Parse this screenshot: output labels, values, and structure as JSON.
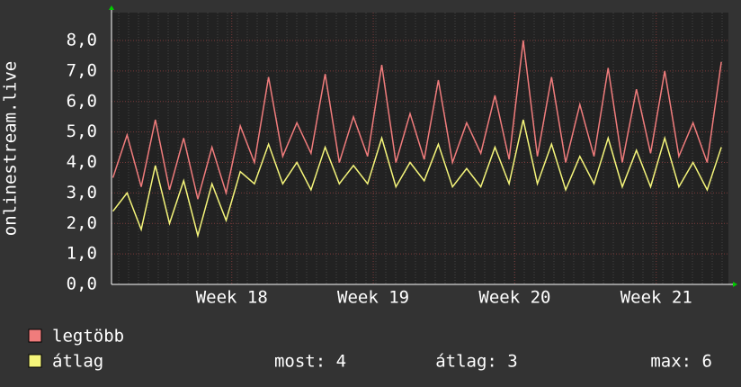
{
  "chart_data": {
    "type": "line",
    "y_label": "onlinestream.live",
    "xlim": [
      17.15,
      21.51
    ],
    "xticks": [
      {
        "value": 18,
        "label": "Week 18"
      },
      {
        "value": 19,
        "label": "Week 19"
      },
      {
        "value": 20,
        "label": "Week 20"
      },
      {
        "value": 21,
        "label": "Week 21"
      }
    ],
    "ylim": [
      0,
      8
    ],
    "yticks": [
      {
        "value": 0,
        "label": "0,0"
      },
      {
        "value": 1,
        "label": "1,0"
      },
      {
        "value": 2,
        "label": "2,0"
      },
      {
        "value": 3,
        "label": "3,0"
      },
      {
        "value": 4,
        "label": "4,0"
      },
      {
        "value": 5,
        "label": "5,0"
      },
      {
        "value": 6,
        "label": "6,0"
      },
      {
        "value": 7,
        "label": "7,0"
      },
      {
        "value": 8,
        "label": "8,0"
      }
    ],
    "grid": true,
    "x": [
      17.16,
      17.26,
      17.36,
      17.46,
      17.56,
      17.66,
      17.76,
      17.86,
      17.96,
      18.06,
      18.16,
      18.26,
      18.36,
      18.46,
      18.56,
      18.66,
      18.76,
      18.86,
      18.96,
      19.06,
      19.16,
      19.26,
      19.36,
      19.46,
      19.56,
      19.66,
      19.76,
      19.86,
      19.96,
      20.06,
      20.16,
      20.26,
      20.36,
      20.46,
      20.56,
      20.66,
      20.76,
      20.86,
      20.96,
      21.06,
      21.16,
      21.26,
      21.36,
      21.46
    ],
    "series": [
      {
        "name": "legtöbb",
        "color": "#f07c7c",
        "values": [
          3.5,
          4.9,
          3.2,
          5.4,
          3.1,
          4.8,
          2.8,
          4.5,
          3.0,
          5.2,
          4.0,
          6.8,
          4.2,
          5.3,
          4.3,
          6.9,
          4.0,
          5.5,
          4.2,
          7.2,
          4.0,
          5.6,
          4.1,
          6.7,
          4.0,
          5.3,
          4.3,
          6.2,
          4.1,
          8.0,
          4.2,
          6.8,
          4.0,
          5.9,
          4.2,
          7.1,
          4.0,
          6.4,
          4.3,
          7.0,
          4.2,
          5.3,
          4.0,
          7.3
        ]
      },
      {
        "name": "átlag",
        "color": "#f5f57a",
        "values": [
          2.4,
          3.0,
          1.8,
          3.9,
          2.0,
          3.4,
          1.6,
          3.3,
          2.1,
          3.7,
          3.3,
          4.6,
          3.3,
          4.0,
          3.1,
          4.5,
          3.3,
          3.9,
          3.3,
          4.8,
          3.2,
          4.0,
          3.4,
          4.6,
          3.2,
          3.8,
          3.2,
          4.5,
          3.3,
          5.4,
          3.3,
          4.6,
          3.1,
          4.2,
          3.3,
          4.8,
          3.2,
          4.4,
          3.2,
          4.8,
          3.2,
          4.0,
          3.1,
          4.5
        ]
      }
    ],
    "stats": [
      "most: 4",
      "átlag: 3",
      "max: 6"
    ]
  }
}
